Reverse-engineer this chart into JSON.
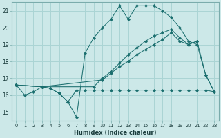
{
  "xlabel": "Humidex (Indice chaleur)",
  "bg_color": "#cce8e8",
  "grid_color": "#aad4d4",
  "line_color": "#1a6e6e",
  "xlim": [
    -0.5,
    23.5
  ],
  "ylim": [
    14.5,
    21.5
  ],
  "xticks": [
    0,
    1,
    2,
    3,
    4,
    5,
    6,
    7,
    8,
    9,
    10,
    11,
    12,
    13,
    14,
    15,
    16,
    17,
    18,
    19,
    20,
    21,
    22,
    23
  ],
  "yticks": [
    15,
    16,
    17,
    18,
    19,
    20,
    21
  ],
  "line1_x": [
    0,
    1,
    2,
    3,
    4,
    5,
    6,
    7,
    8,
    9,
    10,
    11,
    12,
    13,
    14,
    15,
    16,
    17,
    18,
    19,
    20,
    21,
    22,
    23
  ],
  "line1_y": [
    16.6,
    16.0,
    16.2,
    16.5,
    16.4,
    16.1,
    15.6,
    16.3,
    16.3,
    16.3,
    16.3,
    16.3,
    16.3,
    16.3,
    16.3,
    16.3,
    16.3,
    16.3,
    16.3,
    16.3,
    16.3,
    16.3,
    16.3,
    16.2
  ],
  "line2_x": [
    0,
    3,
    4,
    5,
    6,
    7,
    8,
    9,
    10,
    11,
    12,
    13,
    14,
    15,
    16,
    17,
    18,
    19,
    20,
    21,
    22,
    23
  ],
  "line2_y": [
    16.6,
    16.5,
    16.4,
    16.1,
    15.6,
    14.7,
    18.5,
    19.4,
    20.0,
    20.5,
    21.3,
    20.5,
    21.3,
    21.3,
    21.3,
    21.0,
    20.6,
    20.0,
    19.2,
    19.0,
    17.2,
    16.2
  ],
  "line3_x": [
    0,
    3,
    9,
    10,
    11,
    12,
    13,
    14,
    15,
    16,
    17,
    18,
    19,
    20,
    21,
    22,
    23
  ],
  "line3_y": [
    16.6,
    16.5,
    16.5,
    17.0,
    17.4,
    17.9,
    18.4,
    18.8,
    19.2,
    19.5,
    19.7,
    19.9,
    19.4,
    19.0,
    19.2,
    17.2,
    16.2
  ],
  "line4_x": [
    0,
    3,
    10,
    11,
    12,
    13,
    14,
    15,
    16,
    17,
    18,
    19,
    20,
    21
  ],
  "line4_y": [
    16.6,
    16.5,
    16.9,
    17.3,
    17.7,
    18.0,
    18.4,
    18.7,
    19.0,
    19.3,
    19.7,
    19.2,
    19.0,
    19.2
  ]
}
